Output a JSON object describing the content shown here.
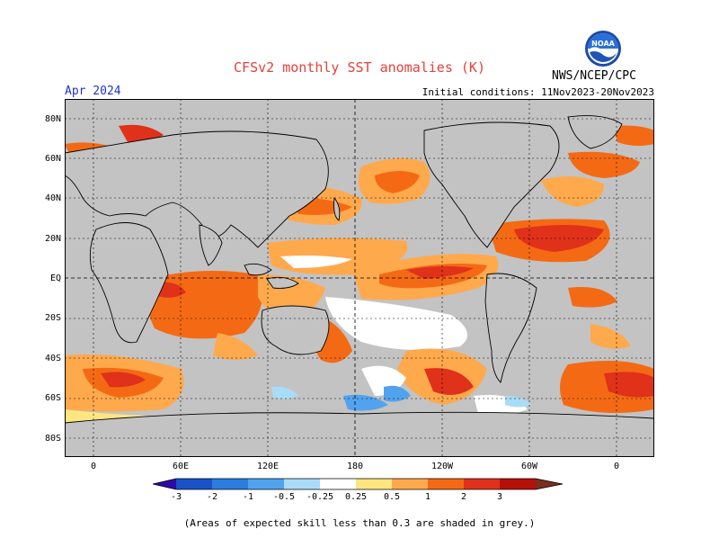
{
  "header": {
    "title": "CFSv2 monthly SST anomalies (K)",
    "month": "Apr 2024",
    "initial_conditions": "Initial conditions: 11Nov2023-20Nov2023",
    "agency": "NWS/NCEP/CPC",
    "logo_text": "NOAA"
  },
  "map": {
    "lat_labels": [
      "80N",
      "60N",
      "40N",
      "20N",
      "EQ",
      "20S",
      "40S",
      "60S",
      "80S"
    ],
    "lon_labels": [
      "0",
      "60E",
      "120E",
      "180",
      "120W",
      "60W",
      "0"
    ]
  },
  "colorbar": {
    "tick_labels": [
      "-3",
      "-2",
      "-1",
      "-0.5",
      "-0.25",
      "0.25",
      "0.5",
      "1",
      "2",
      "3"
    ],
    "colors": [
      "#2e0aa6",
      "#1a52c8",
      "#2b7de0",
      "#52a3ee",
      "#a9dcf7",
      "#ffffff",
      "#fde680",
      "#ffa94d",
      "#f46a14",
      "#e0311a",
      "#b71009",
      "#7a2e1e"
    ]
  },
  "footnote": "(Areas of expected skill less than 0.3 are shaded in grey.)"
}
